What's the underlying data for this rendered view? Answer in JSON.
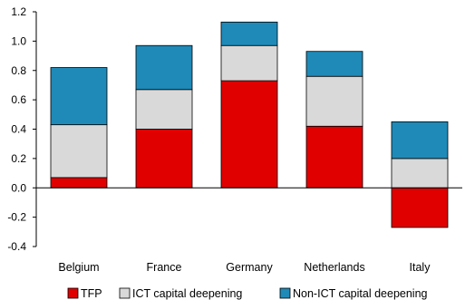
{
  "chart_data": {
    "type": "bar",
    "stacked": true,
    "categories": [
      "Belgium",
      "France",
      "Germany",
      "Netherlands",
      "Italy"
    ],
    "series": [
      {
        "name": "TFP",
        "color": "#e00000",
        "values": [
          0.07,
          0.4,
          0.73,
          0.42,
          -0.27
        ]
      },
      {
        "name": "ICT capital deepening",
        "color": "#d9d9d9",
        "values": [
          0.36,
          0.27,
          0.24,
          0.34,
          0.2
        ]
      },
      {
        "name": "Non-ICT capital deepening",
        "color": "#1f8ab8",
        "values": [
          0.39,
          0.3,
          0.16,
          0.17,
          0.25
        ]
      }
    ],
    "yticks": [
      "-0.4",
      "-0.2",
      "0.0",
      "0.2",
      "0.4",
      "0.6",
      "0.8",
      "1.0",
      "1.2"
    ],
    "ylim": [
      -0.4,
      1.2
    ],
    "grid": false,
    "legend_position": "bottom"
  }
}
